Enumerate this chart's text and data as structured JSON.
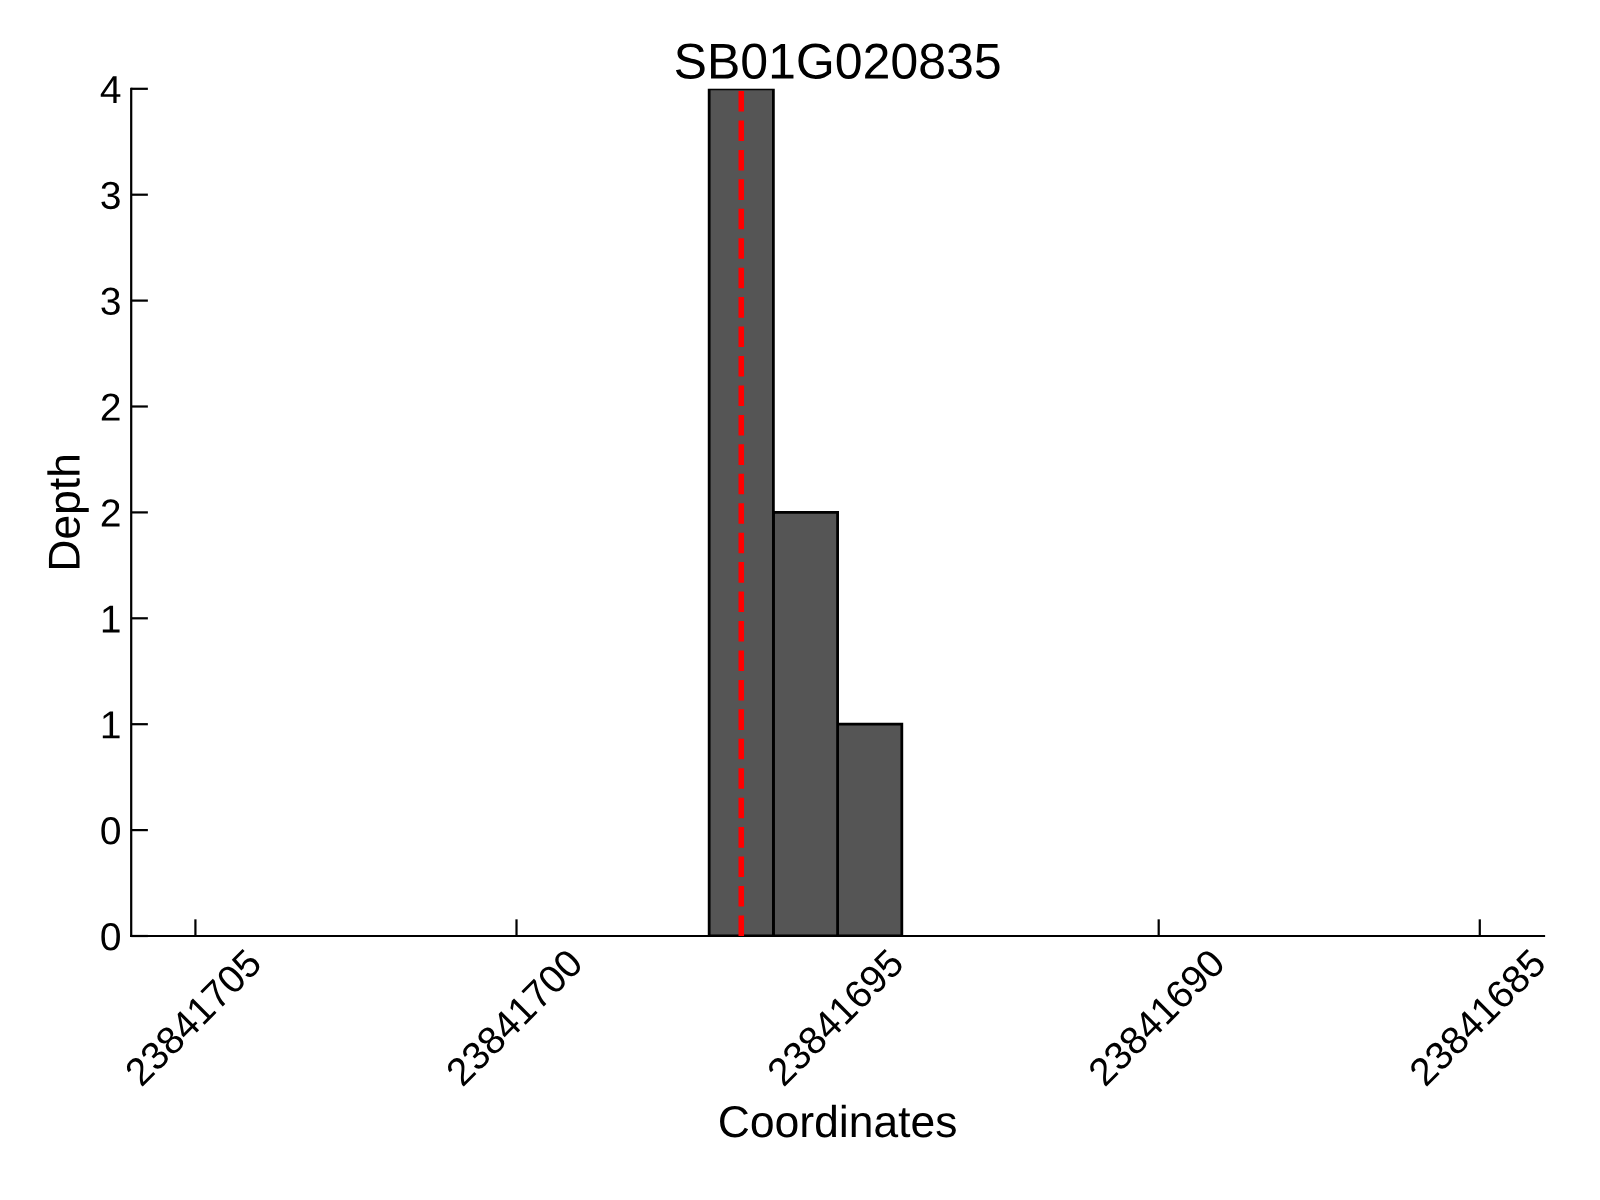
{
  "chart_data": {
    "type": "histogram",
    "title": "SB01G020835",
    "xlabel": "Coordinates",
    "ylabel": "Depth",
    "bins": [
      23841694,
      23841695,
      23841696,
      23841697
    ],
    "values": [
      1,
      2,
      4
    ],
    "color": "#555555",
    "xlim": [
      23841706,
      23841684
    ],
    "xticks": [
      23841705,
      23841700,
      23841695,
      23841690,
      23841685
    ],
    "ylim": [
      0,
      4
    ],
    "yticks": [
      0,
      {
        "value": 0.5,
        "label": "0"
      },
      1,
      {
        "value": 1.5,
        "label": "1"
      },
      2,
      {
        "value": 2.5,
        "label": "2"
      },
      3,
      {
        "value": 3.5,
        "label": "3"
      },
      4
    ],
    "ref_lines": [
      {
        "axis": "x",
        "value": 23841696.5,
        "label": null,
        "color": "#ff0000",
        "line_style": "dashed"
      }
    ],
    "grid": false,
    "legend": false
  }
}
